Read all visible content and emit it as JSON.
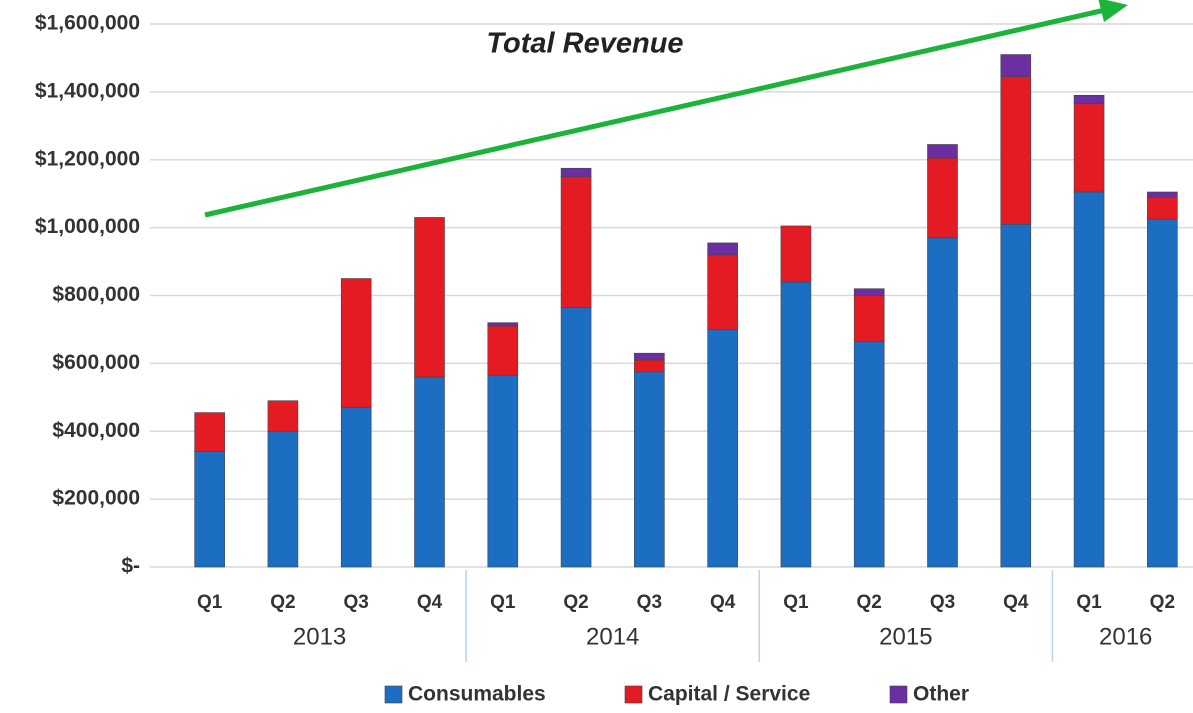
{
  "chart_data": {
    "type": "stacked_bar",
    "annotation": "Total Revenue",
    "categories": [
      "Q1",
      "Q2",
      "Q3",
      "Q4",
      "Q1",
      "Q2",
      "Q3",
      "Q4",
      "Q1",
      "Q2",
      "Q3",
      "Q4",
      "Q1",
      "Q2"
    ],
    "groups": [
      {
        "label": "2013",
        "count": 4
      },
      {
        "label": "2014",
        "count": 4
      },
      {
        "label": "2015",
        "count": 4
      },
      {
        "label": "2016",
        "count": 2
      }
    ],
    "series": [
      {
        "name": "Consumables",
        "color": "#1b6ec2",
        "values": [
          340000,
          400000,
          470000,
          560000,
          565000,
          765000,
          575000,
          700000,
          840000,
          665000,
          970000,
          1010000,
          1105000,
          1025000
        ]
      },
      {
        "name": "Capital / Service",
        "color": "#e41b22",
        "values": [
          115000,
          90000,
          380000,
          470000,
          145000,
          385000,
          35000,
          220000,
          165000,
          135000,
          235000,
          435000,
          260000,
          65000
        ]
      },
      {
        "name": "Other",
        "color": "#6b2fa2",
        "values": [
          0,
          0,
          0,
          0,
          10000,
          25000,
          20000,
          35000,
          0,
          20000,
          40000,
          65000,
          25000,
          15000
        ]
      }
    ],
    "ylim": [
      0,
      1600000
    ],
    "yticks": [
      {
        "value": 0,
        "label": "$-"
      },
      {
        "value": 200000,
        "label": "$200,000"
      },
      {
        "value": 400000,
        "label": "$400,000"
      },
      {
        "value": 600000,
        "label": "$600,000"
      },
      {
        "value": 800000,
        "label": "$800,000"
      },
      {
        "value": 1000000,
        "label": "$1,000,000"
      },
      {
        "value": 1200000,
        "label": "$1,200,000"
      },
      {
        "value": 1400000,
        "label": "$1,400,000"
      },
      {
        "value": 1600000,
        "label": "$1,600,000"
      }
    ],
    "grid": true,
    "legend": "bottom"
  }
}
